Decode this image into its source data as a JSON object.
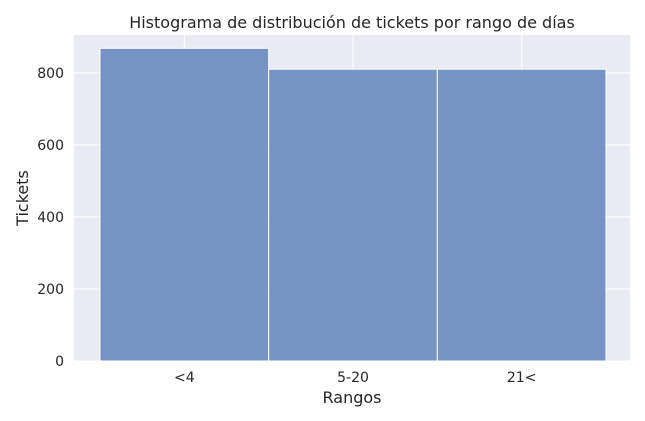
{
  "chart_data": {
    "type": "bar",
    "title": "Histograma de distribución de tickets por rango de días",
    "xlabel": "Rangos",
    "ylabel": "Tickets",
    "categories": [
      "<4",
      "5-20",
      "21<"
    ],
    "values": [
      868,
      810,
      810
    ],
    "ylim": [
      0,
      905
    ],
    "yticks": [
      0,
      200,
      400,
      600,
      800
    ],
    "grid": true,
    "legend": "none",
    "colors": {
      "bar": "#6f8fc1",
      "bar_edge": "#ffffff",
      "plot_background": "#eaeaf2",
      "grid": "#ffffff"
    }
  }
}
